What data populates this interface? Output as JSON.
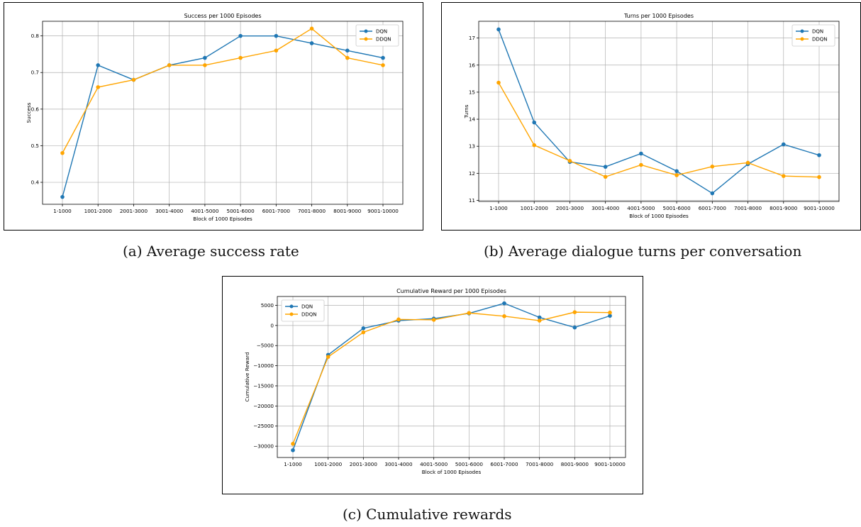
{
  "figure": {
    "captions": [
      "(a) Average success rate",
      "(b) Average dialogue turns per conversation",
      "(c) Cumulative rewards"
    ]
  },
  "colors": {
    "dqn": "#1f77b4",
    "ddqn": "#ffa500",
    "grid": "#b0b0b0"
  },
  "chart_data": [
    {
      "type": "line",
      "title": "Success per 1000 Episodes",
      "xlabel": "Block of 1000 Episodes",
      "ylabel": "Success",
      "categories": [
        "1-1000",
        "1001-2000",
        "2001-3000",
        "3001-4000",
        "4001-5000",
        "5001-6000",
        "6001-7000",
        "7001-8000",
        "8001-9000",
        "9001-10000"
      ],
      "series": [
        {
          "name": "DQN",
          "values": [
            0.36,
            0.72,
            0.68,
            0.72,
            0.74,
            0.8,
            0.8,
            0.78,
            0.76,
            0.74
          ]
        },
        {
          "name": "DDQN",
          "values": [
            0.48,
            0.66,
            0.68,
            0.72,
            0.72,
            0.74,
            0.76,
            0.82,
            0.74,
            0.72
          ]
        }
      ],
      "ylim": [
        0.34,
        0.84
      ],
      "yticks": [
        0.4,
        0.5,
        0.6,
        0.7,
        0.8
      ],
      "ytick_labels": [
        "0.4",
        "0.5",
        "0.6",
        "0.7",
        "0.8"
      ],
      "grid": true,
      "legend": "top-right"
    },
    {
      "type": "line",
      "title": "Turns per 1000 Episodes",
      "xlabel": "Block of 1000 Episodes",
      "ylabel": "Turns",
      "categories": [
        "1-1000",
        "1001-2000",
        "2001-3000",
        "3001-4000",
        "4001-5000",
        "5001-6000",
        "6001-7000",
        "7001-8000",
        "8001-9000",
        "9001-10000"
      ],
      "series": [
        {
          "name": "DQN",
          "values": [
            17.32,
            13.88,
            12.42,
            12.24,
            12.73,
            12.08,
            11.26,
            12.34,
            13.07,
            12.67
          ]
        },
        {
          "name": "DDQN",
          "values": [
            15.35,
            13.04,
            12.46,
            11.87,
            12.31,
            11.93,
            12.25,
            12.39,
            11.9,
            11.86
          ]
        }
      ],
      "ylim": [
        10.96,
        17.62
      ],
      "yticks": [
        11,
        12,
        13,
        14,
        15,
        16,
        17
      ],
      "ytick_labels": [
        "11",
        "12",
        "13",
        "14",
        "15",
        "16",
        "17"
      ],
      "grid": true,
      "legend": "top-right"
    },
    {
      "type": "line",
      "title": "Cumulative Reward per 1000 Episodes",
      "xlabel": "Block of 1000 Episodes",
      "ylabel": "Cumulative Reward",
      "categories": [
        "1-1000",
        "1001-2000",
        "2001-3000",
        "3001-4000",
        "4001-5000",
        "5001-6000",
        "6001-7000",
        "7001-8000",
        "8001-9000",
        "9001-10000"
      ],
      "series": [
        {
          "name": "DQN",
          "values": [
            -31000,
            -7300,
            -700,
            1200,
            1700,
            3000,
            5500,
            2000,
            -500,
            2400
          ]
        },
        {
          "name": "DDQN",
          "values": [
            -29400,
            -7800,
            -1700,
            1500,
            1400,
            3100,
            2300,
            1200,
            3300,
            3200
          ]
        }
      ],
      "ylim": [
        -32800,
        7200
      ],
      "yticks": [
        -30000,
        -25000,
        -20000,
        -15000,
        -10000,
        -5000,
        0,
        5000
      ],
      "ytick_labels": [
        "−30000",
        "−25000",
        "−20000",
        "−15000",
        "−10000",
        "−5000",
        "0",
        "5000"
      ],
      "grid": true,
      "legend": "top-left"
    }
  ]
}
